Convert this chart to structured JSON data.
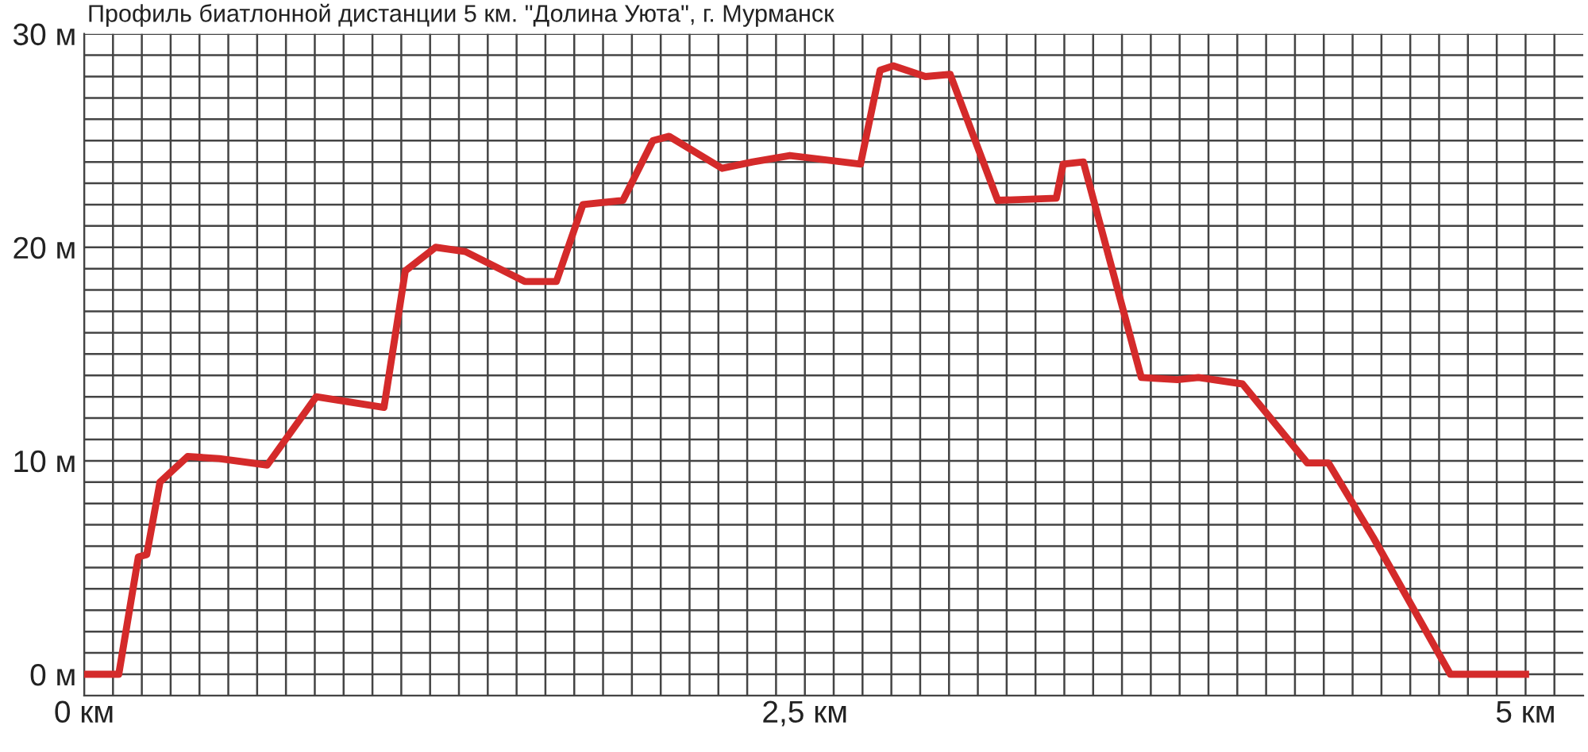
{
  "chart_data": {
    "type": "line",
    "title": "Профиль биатлонной дистанции 5 км. \"Долина Уюта\", г. Мурманск",
    "x": [
      0,
      0.12,
      0.188,
      0.217,
      0.263,
      0.359,
      0.469,
      0.635,
      0.805,
      1.04,
      1.114,
      1.219,
      1.322,
      1.528,
      1.638,
      1.73,
      1.869,
      1.973,
      2.029,
      2.213,
      2.319,
      2.448,
      2.693,
      2.761,
      2.807,
      2.918,
      3.004,
      3.169,
      3.372,
      3.396,
      3.466,
      3.667,
      3.792,
      3.865,
      4.018,
      4.243,
      4.316,
      4.472,
      4.739,
      5.0
    ],
    "series": [
      {
        "color": "#d42a2a",
        "values": [
          0,
          0,
          5.5,
          5.6,
          9.0,
          10.2,
          10.1,
          9.8,
          13.0,
          12.5,
          18.9,
          20.0,
          19.8,
          18.4,
          18.4,
          22.0,
          22.2,
          25.0,
          25.2,
          23.7,
          24.0,
          24.3,
          23.9,
          28.3,
          28.5,
          28.0,
          28.1,
          22.2,
          22.3,
          23.9,
          24.0,
          13.9,
          13.8,
          13.9,
          13.6,
          9.9,
          9.9,
          6.4,
          0,
          0
        ]
      }
    ],
    "xlim": [
      0,
      5.2
    ],
    "ylim": [
      -1,
      30
    ],
    "xticks": [
      {
        "value": 0,
        "label": "0 км"
      },
      {
        "value": 0.1,
        "label": null
      },
      {
        "value": 0.2,
        "label": null
      },
      {
        "value": 0.3,
        "label": null
      },
      {
        "value": 0.4,
        "label": null
      },
      {
        "value": 0.5,
        "label": null
      },
      {
        "value": 0.6,
        "label": null
      },
      {
        "value": 0.7,
        "label": null
      },
      {
        "value": 0.8,
        "label": null
      },
      {
        "value": 0.9,
        "label": null
      },
      {
        "value": 1.0,
        "label": null
      },
      {
        "value": 1.1,
        "label": null
      },
      {
        "value": 1.2,
        "label": null
      },
      {
        "value": 1.3,
        "label": null
      },
      {
        "value": 1.4,
        "label": null
      },
      {
        "value": 1.5,
        "label": null
      },
      {
        "value": 1.6,
        "label": null
      },
      {
        "value": 1.7,
        "label": null
      },
      {
        "value": 1.8,
        "label": null
      },
      {
        "value": 1.9,
        "label": null
      },
      {
        "value": 2.0,
        "label": null
      },
      {
        "value": 2.1,
        "label": null
      },
      {
        "value": 2.2,
        "label": null
      },
      {
        "value": 2.3,
        "label": null
      },
      {
        "value": 2.4,
        "label": null
      },
      {
        "value": 2.5,
        "label": "2,5 км"
      },
      {
        "value": 2.6,
        "label": null
      },
      {
        "value": 2.7,
        "label": null
      },
      {
        "value": 2.8,
        "label": null
      },
      {
        "value": 2.9,
        "label": null
      },
      {
        "value": 3.0,
        "label": null
      },
      {
        "value": 3.1,
        "label": null
      },
      {
        "value": 3.2,
        "label": null
      },
      {
        "value": 3.3,
        "label": null
      },
      {
        "value": 3.4,
        "label": null
      },
      {
        "value": 3.5,
        "label": null
      },
      {
        "value": 3.6,
        "label": null
      },
      {
        "value": 3.7,
        "label": null
      },
      {
        "value": 3.8,
        "label": null
      },
      {
        "value": 3.9,
        "label": null
      },
      {
        "value": 4.0,
        "label": null
      },
      {
        "value": 4.1,
        "label": null
      },
      {
        "value": 4.2,
        "label": null
      },
      {
        "value": 4.3,
        "label": null
      },
      {
        "value": 4.4,
        "label": null
      },
      {
        "value": 4.5,
        "label": null
      },
      {
        "value": 4.6,
        "label": null
      },
      {
        "value": 4.7,
        "label": null
      },
      {
        "value": 4.8,
        "label": null
      },
      {
        "value": 4.9,
        "label": null
      },
      {
        "value": 5.0,
        "label": "5 км"
      },
      {
        "value": 5.1,
        "label": null
      }
    ],
    "yticks": [
      {
        "value": 0,
        "label": "0 м"
      },
      {
        "value": 1,
        "label": null
      },
      {
        "value": 2,
        "label": null
      },
      {
        "value": 3,
        "label": null
      },
      {
        "value": 4,
        "label": null
      },
      {
        "value": 5,
        "label": null
      },
      {
        "value": 6,
        "label": null
      },
      {
        "value": 7,
        "label": null
      },
      {
        "value": 8,
        "label": null
      },
      {
        "value": 9,
        "label": null
      },
      {
        "value": 10,
        "label": "10 м"
      },
      {
        "value": 11,
        "label": null
      },
      {
        "value": 12,
        "label": null
      },
      {
        "value": 13,
        "label": null
      },
      {
        "value": 14,
        "label": null
      },
      {
        "value": 15,
        "label": null
      },
      {
        "value": 16,
        "label": null
      },
      {
        "value": 17,
        "label": null
      },
      {
        "value": 18,
        "label": null
      },
      {
        "value": 19,
        "label": null
      },
      {
        "value": 20,
        "label": "20 м"
      },
      {
        "value": 21,
        "label": null
      },
      {
        "value": 22,
        "label": null
      },
      {
        "value": 23,
        "label": null
      },
      {
        "value": 24,
        "label": null
      },
      {
        "value": 25,
        "label": null
      },
      {
        "value": 26,
        "label": null
      },
      {
        "value": 27,
        "label": null
      },
      {
        "value": 28,
        "label": null
      },
      {
        "value": 29,
        "label": null
      },
      {
        "value": 30,
        "label": "30 м"
      }
    ],
    "grid": true,
    "marker": "none",
    "line_style": "solid"
  }
}
